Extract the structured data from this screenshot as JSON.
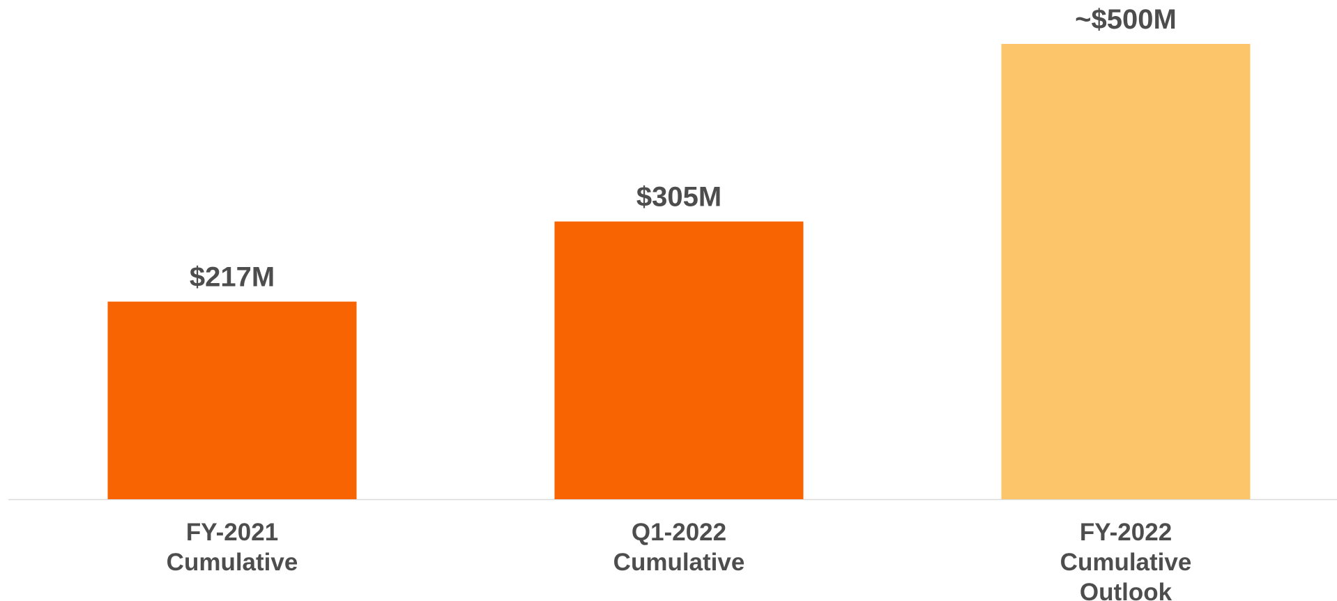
{
  "chart_data": {
    "type": "bar",
    "categories": [
      [
        "FY-2021",
        "Cumulative"
      ],
      [
        "Q1-2022",
        "Cumulative"
      ],
      [
        "FY-2022",
        "Cumulative",
        "Outlook"
      ]
    ],
    "values": [
      217,
      305,
      500
    ],
    "data_labels": [
      "$217M",
      "$305M",
      "~$500M"
    ],
    "unit": "$M",
    "colors": [
      "#f86402",
      "#f86402",
      "#fdc56a"
    ],
    "axis_color": "#d9d9d9",
    "text_color": "#4d4d4d",
    "title": "",
    "xlabel": "",
    "ylabel": "",
    "ylim": [
      0,
      500
    ],
    "grid": false,
    "legend": "none"
  }
}
